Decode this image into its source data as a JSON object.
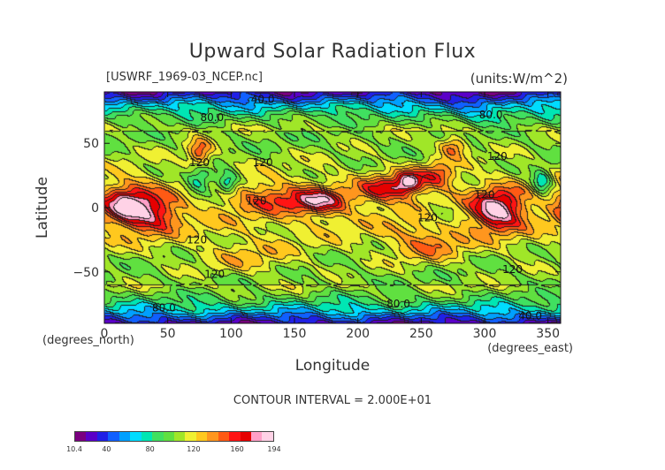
{
  "chart_data": {
    "type": "heatmap",
    "title": "Upward Solar Radiation Flux",
    "subtitle_left": "[USWRF_1969-03_NCEP.nc]",
    "subtitle_right": "(units:W/m^2)",
    "xlabel": "Longitude",
    "ylabel": "Latitude",
    "x_units_label": "(degrees_east)",
    "y_units_label": "(degrees_north)",
    "xlim": [
      0,
      360
    ],
    "ylim": [
      -90,
      90
    ],
    "x_ticks": [
      0,
      50,
      100,
      150,
      200,
      250,
      300,
      350
    ],
    "y_ticks": [
      50,
      0,
      -50
    ],
    "x_tick_labels": [
      "0",
      "50",
      "100",
      "150",
      "200",
      "250",
      "300",
      "350"
    ],
    "y_tick_labels": [
      "50",
      "0",
      "−50"
    ],
    "contour_interval_text": "CONTOUR INTERVAL = 2.000E+01",
    "contour_labels": [
      {
        "text": "40.0",
        "lon": 125,
        "lat": 84
      },
      {
        "text": "80.0",
        "lon": 85,
        "lat": 70
      },
      {
        "text": "80.0",
        "lon": 305,
        "lat": 72
      },
      {
        "text": "120",
        "lon": 75,
        "lat": 35
      },
      {
        "text": "120",
        "lon": 125,
        "lat": 35
      },
      {
        "text": "120",
        "lon": 310,
        "lat": 40
      },
      {
        "text": "120",
        "lon": 120,
        "lat": 5
      },
      {
        "text": "120",
        "lon": 255,
        "lat": -8
      },
      {
        "text": "120",
        "lon": 300,
        "lat": 10
      },
      {
        "text": "120",
        "lon": 73,
        "lat": -25
      },
      {
        "text": "120",
        "lon": 87,
        "lat": -52
      },
      {
        "text": "120",
        "lon": 322,
        "lat": -48
      },
      {
        "text": "80.0",
        "lon": 47,
        "lat": -78
      },
      {
        "text": "80.0",
        "lon": 232,
        "lat": -75
      },
      {
        "text": "40.0",
        "lon": 336,
        "lat": -84
      }
    ],
    "field_centers": [
      {
        "lon": 18,
        "lat": 2,
        "value": 180,
        "sx": 14,
        "sy": 12
      },
      {
        "lon": 40,
        "lat": -5,
        "value": 160,
        "sx": 14,
        "sy": 10
      },
      {
        "lon": 75,
        "lat": 42,
        "value": 165,
        "sx": 7,
        "sy": 8
      },
      {
        "lon": 170,
        "lat": 5,
        "value": 170,
        "sx": 15,
        "sy": 7
      },
      {
        "lon": 222,
        "lat": 15,
        "value": 165,
        "sx": 14,
        "sy": 7
      },
      {
        "lon": 240,
        "lat": 20,
        "value": 178,
        "sx": 7,
        "sy": 6
      },
      {
        "lon": 262,
        "lat": 25,
        "value": 160,
        "sx": 10,
        "sy": 7
      },
      {
        "lon": 275,
        "lat": 48,
        "value": 162,
        "sx": 8,
        "sy": 6
      },
      {
        "lon": 310,
        "lat": -2,
        "value": 192,
        "sx": 14,
        "sy": 11
      },
      {
        "lon": 132,
        "lat": 8,
        "value": 148,
        "sx": 22,
        "sy": 8
      },
      {
        "lon": 255,
        "lat": -28,
        "value": 148,
        "sx": 20,
        "sy": 10
      },
      {
        "lon": 115,
        "lat": -40,
        "value": 138,
        "sx": 25,
        "sy": 9
      },
      {
        "lon": 75,
        "lat": 22,
        "value": 72,
        "sx": 8,
        "sy": 8
      },
      {
        "lon": 97,
        "lat": 20,
        "value": 70,
        "sx": 6,
        "sy": 6
      },
      {
        "lon": 345,
        "lat": 20,
        "value": 72,
        "sx": 6,
        "sy": 7
      },
      {
        "lon": 265,
        "lat": -5,
        "value": 95,
        "sx": 10,
        "sy": 6
      },
      {
        "lon": 295,
        "lat": 75,
        "value": 95,
        "sx": 16,
        "sy": 8
      }
    ],
    "colorbar": {
      "min_label": "10.4",
      "max_label": "194",
      "tick_labels": [
        "10.4",
        "40",
        "80",
        "120",
        "160",
        "194"
      ],
      "tick_values": [
        10.4,
        40,
        80,
        120,
        160,
        194
      ]
    }
  },
  "colors": {
    "scale": [
      "#7a0080",
      "#5a00c8",
      "#2020e6",
      "#1060ff",
      "#00a0ff",
      "#00dcff",
      "#00e6b4",
      "#40e060",
      "#60e040",
      "#a0e628",
      "#f0f032",
      "#ffc81e",
      "#ff961e",
      "#ff5a14",
      "#ff1414",
      "#e60000",
      "#ffa0c8",
      "#ffd2e6"
    ]
  }
}
